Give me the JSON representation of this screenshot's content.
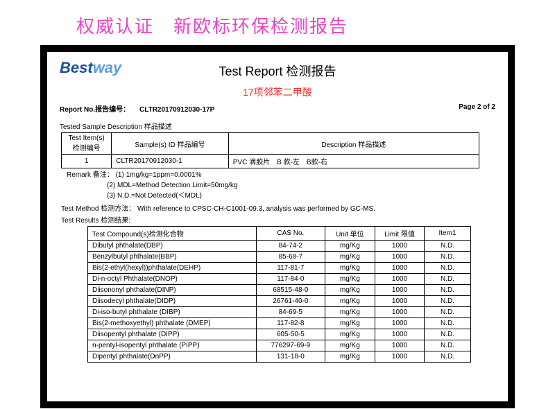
{
  "banner": "权威认证　新欧标环保检测报告",
  "logo_part1": "Best",
  "logo_part2": "way",
  "report_title": "Test Report 检测报告",
  "subtitle": "17项邻苯二甲酸",
  "meta": {
    "report_no_label": "Report No.报告编号：",
    "report_no": "CLTR20170912030-17P",
    "page": "Page 2 of 2"
  },
  "sample_desc_label": "Tested Sample Description 样品描述",
  "sample_headers": {
    "c1": "Test Item(s)\n检测编号",
    "c2": "Sample(s) ID 样品编号",
    "c3": "Description 样品描述"
  },
  "sample_row": {
    "num": "1",
    "id": "CLTR20170912030-1",
    "desc": "PVC 滴胶片　B 款-左　B款-右"
  },
  "remark_label": "Remark 备注：",
  "remarks": [
    "(1) 1mg/kg=1ppm=0.0001%",
    "(2) MDL=Method Detection Limit=50mg/kg",
    "(3) N.D.=Not Detected(＜MDL)"
  ],
  "method_label": "Test Method 检测方法：",
  "method_text": "With reference to CPSC-CH-C1001-09.3, analysis was performed by GC-MS.",
  "results_label": "Test Results 检测结果:",
  "results_headers": {
    "compound": "Test Compound(s)检测化合物",
    "cas": "CAS No.",
    "unit": "Unit 单位",
    "limit": "Limit 限值",
    "item": "Item1"
  },
  "results": [
    {
      "name": "Dibutyl phthalate(DBP)",
      "cas": "84-74-2",
      "unit": "mg/Kg",
      "limit": "1000",
      "item": "N.D."
    },
    {
      "name": "Benzylbutyl phthalate(BBP)",
      "cas": "85-68-7",
      "unit": "mg/Kg",
      "limit": "1000",
      "item": "N.D."
    },
    {
      "name": "Bis(2-ethyl(hexyl))phthalate(DEHP)",
      "cas": "117-81-7",
      "unit": "mg/Kg",
      "limit": "1000",
      "item": "N.D."
    },
    {
      "name": "Di-n-octyl Phthalate(DNOP)",
      "cas": "117-84-0",
      "unit": "mg/Kg",
      "limit": "1000",
      "item": "N.D."
    },
    {
      "name": "Diisononyl phthalate(DINP)",
      "cas": "68515-48-0",
      "unit": "mg/Kg",
      "limit": "1000",
      "item": "N.D."
    },
    {
      "name": "Diisodecyl phthalate(DIDP)",
      "cas": "26761-40-0",
      "unit": "mg/Kg",
      "limit": "1000",
      "item": "N.D."
    },
    {
      "name": "Di-iso-butyl phthalate (DIBP)",
      "cas": "84-69-5",
      "unit": "mg/Kg",
      "limit": "1000",
      "item": "N.D."
    },
    {
      "name": "Bis(2-methoxyethyl) phthalate (DMEP)",
      "cas": "117-82-8",
      "unit": "mg/Kg",
      "limit": "1000",
      "item": "N.D."
    },
    {
      "name": "Diisopentyl phthalate (DIPP)",
      "cas": "605-50-5",
      "unit": "mg/Kg",
      "limit": "1000",
      "item": "N.D."
    },
    {
      "name": "n-pentyl-isopentyl phthalate (PIPP)",
      "cas": "776297-69-9",
      "unit": "mg/Kg",
      "limit": "1000",
      "item": "N.D."
    },
    {
      "name": "Dipentyl phthalate(DnPP)",
      "cas": "131-18-0",
      "unit": "mg/Kg",
      "limit": "1000",
      "item": "N.D."
    }
  ]
}
